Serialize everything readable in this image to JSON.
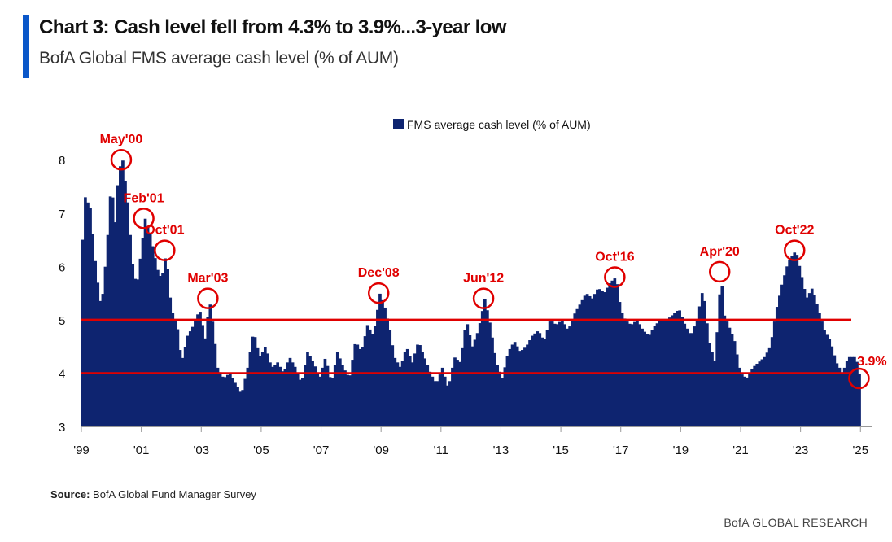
{
  "header": {
    "title": "Chart 3: Cash level fell from 4.3% to 3.9%...3-year low",
    "subtitle": "BofA Global FMS average cash level (% of AUM)"
  },
  "source": {
    "label": "Source:",
    "text": "BofA Global Fund Manager Survey"
  },
  "footer": "BofA GLOBAL RESEARCH",
  "colors": {
    "bar": "#0e2470",
    "threshold": "#e00000",
    "annotation": "#e00000",
    "accent": "#0a57c9"
  },
  "chart_data": {
    "type": "area",
    "title": "Chart 3: Cash level fell from 4.3% to 3.9%...3-year low",
    "subtitle": "BofA Global FMS average cash level (% of AUM)",
    "legend": {
      "label": "FMS average cash level (% of AUM)",
      "placement": "top-center"
    },
    "ylim": [
      3,
      8.4
    ],
    "yticks": [
      3,
      4,
      5,
      6,
      7,
      8
    ],
    "xlim": [
      1999.0,
      2025.4
    ],
    "xticks": [
      {
        "value": 1999,
        "label": "'99"
      },
      {
        "value": 2001,
        "label": "'01"
      },
      {
        "value": 2003,
        "label": "'03"
      },
      {
        "value": 2005,
        "label": "'05"
      },
      {
        "value": 2007,
        "label": "'07"
      },
      {
        "value": 2009,
        "label": "'09"
      },
      {
        "value": 2011,
        "label": "'11"
      },
      {
        "value": 2013,
        "label": "'13"
      },
      {
        "value": 2015,
        "label": "'15"
      },
      {
        "value": 2017,
        "label": "'17"
      },
      {
        "value": 2019,
        "label": "'19"
      },
      {
        "value": 2021,
        "label": "'21"
      },
      {
        "value": 2023,
        "label": "'23"
      },
      {
        "value": 2025,
        "label": "'25"
      }
    ],
    "reference_lines": [
      5.0,
      4.0
    ],
    "series": [
      {
        "name": "FMS average cash level (% of AUM)",
        "points": [
          [
            1999.0,
            6.5
          ],
          [
            1999.08,
            7.3
          ],
          [
            1999.25,
            7.1
          ],
          [
            1999.45,
            5.9
          ],
          [
            1999.62,
            5.2
          ],
          [
            1999.8,
            6.3
          ],
          [
            1999.95,
            7.6
          ],
          [
            2000.08,
            6.8
          ],
          [
            2000.2,
            7.8
          ],
          [
            2000.33,
            8.0
          ],
          [
            2000.5,
            7.2
          ],
          [
            2000.65,
            6.1
          ],
          [
            2000.8,
            5.6
          ],
          [
            2000.95,
            6.3
          ],
          [
            2001.08,
            6.9
          ],
          [
            2001.25,
            6.6
          ],
          [
            2001.4,
            6.2
          ],
          [
            2001.55,
            5.8
          ],
          [
            2001.7,
            5.9
          ],
          [
            2001.78,
            6.3
          ],
          [
            2001.95,
            5.2
          ],
          [
            2002.15,
            4.9
          ],
          [
            2002.3,
            4.2
          ],
          [
            2002.5,
            4.7
          ],
          [
            2002.7,
            4.9
          ],
          [
            2002.9,
            5.2
          ],
          [
            2003.1,
            4.6
          ],
          [
            2003.22,
            5.4
          ],
          [
            2003.35,
            4.9
          ],
          [
            2003.5,
            4.1
          ],
          [
            2003.7,
            3.9
          ],
          [
            2003.9,
            4.0
          ],
          [
            2004.1,
            3.8
          ],
          [
            2004.3,
            3.6
          ],
          [
            2004.5,
            4.1
          ],
          [
            2004.7,
            4.8
          ],
          [
            2004.9,
            4.3
          ],
          [
            2005.1,
            4.5
          ],
          [
            2005.3,
            4.1
          ],
          [
            2005.5,
            4.2
          ],
          [
            2005.7,
            4.0
          ],
          [
            2005.9,
            4.3
          ],
          [
            2006.1,
            4.1
          ],
          [
            2006.3,
            3.8
          ],
          [
            2006.5,
            4.4
          ],
          [
            2006.7,
            4.2
          ],
          [
            2006.9,
            3.9
          ],
          [
            2007.1,
            4.3
          ],
          [
            2007.3,
            3.8
          ],
          [
            2007.5,
            4.4
          ],
          [
            2007.7,
            4.1
          ],
          [
            2007.9,
            3.9
          ],
          [
            2008.1,
            4.6
          ],
          [
            2008.3,
            4.4
          ],
          [
            2008.5,
            4.9
          ],
          [
            2008.7,
            4.7
          ],
          [
            2008.92,
            5.5
          ],
          [
            2009.1,
            5.2
          ],
          [
            2009.25,
            4.8
          ],
          [
            2009.4,
            4.3
          ],
          [
            2009.6,
            4.1
          ],
          [
            2009.8,
            4.5
          ],
          [
            2010.0,
            4.2
          ],
          [
            2010.2,
            4.6
          ],
          [
            2010.4,
            4.3
          ],
          [
            2010.6,
            4.0
          ],
          [
            2010.8,
            3.8
          ],
          [
            2011.0,
            4.1
          ],
          [
            2011.2,
            3.7
          ],
          [
            2011.4,
            4.3
          ],
          [
            2011.6,
            4.2
          ],
          [
            2011.8,
            5.0
          ],
          [
            2012.0,
            4.5
          ],
          [
            2012.2,
            4.8
          ],
          [
            2012.42,
            5.4
          ],
          [
            2012.6,
            4.9
          ],
          [
            2012.8,
            4.2
          ],
          [
            2013.0,
            3.9
          ],
          [
            2013.2,
            4.4
          ],
          [
            2013.4,
            4.6
          ],
          [
            2013.6,
            4.4
          ],
          [
            2013.8,
            4.5
          ],
          [
            2014.0,
            4.7
          ],
          [
            2014.2,
            4.8
          ],
          [
            2014.4,
            4.6
          ],
          [
            2014.6,
            5.0
          ],
          [
            2014.8,
            4.9
          ],
          [
            2015.0,
            5.0
          ],
          [
            2015.2,
            4.8
          ],
          [
            2015.4,
            5.1
          ],
          [
            2015.6,
            5.3
          ],
          [
            2015.8,
            5.5
          ],
          [
            2016.0,
            5.4
          ],
          [
            2016.2,
            5.6
          ],
          [
            2016.4,
            5.5
          ],
          [
            2016.6,
            5.7
          ],
          [
            2016.8,
            5.8
          ],
          [
            2016.95,
            5.2
          ],
          [
            2017.1,
            5.0
          ],
          [
            2017.3,
            4.9
          ],
          [
            2017.5,
            5.0
          ],
          [
            2017.7,
            4.8
          ],
          [
            2017.9,
            4.7
          ],
          [
            2018.1,
            4.9
          ],
          [
            2018.3,
            5.0
          ],
          [
            2018.5,
            5.0
          ],
          [
            2018.7,
            5.1
          ],
          [
            2018.9,
            5.2
          ],
          [
            2019.1,
            4.9
          ],
          [
            2019.3,
            4.7
          ],
          [
            2019.5,
            5.0
          ],
          [
            2019.7,
            5.6
          ],
          [
            2019.9,
            4.6
          ],
          [
            2020.1,
            4.2
          ],
          [
            2020.3,
            5.9
          ],
          [
            2020.4,
            5.1
          ],
          [
            2020.55,
            4.9
          ],
          [
            2020.75,
            4.6
          ],
          [
            2020.95,
            4.0
          ],
          [
            2021.15,
            3.9
          ],
          [
            2021.35,
            4.1
          ],
          [
            2021.55,
            4.2
          ],
          [
            2021.75,
            4.3
          ],
          [
            2021.95,
            4.5
          ],
          [
            2022.15,
            5.2
          ],
          [
            2022.35,
            5.7
          ],
          [
            2022.55,
            6.1
          ],
          [
            2022.8,
            6.3
          ],
          [
            2023.0,
            5.8
          ],
          [
            2023.15,
            5.4
          ],
          [
            2023.35,
            5.6
          ],
          [
            2023.55,
            5.2
          ],
          [
            2023.75,
            4.8
          ],
          [
            2023.95,
            4.6
          ],
          [
            2024.15,
            4.2
          ],
          [
            2024.35,
            4.0
          ],
          [
            2024.55,
            4.3
          ],
          [
            2024.8,
            4.3
          ],
          [
            2024.95,
            3.9
          ]
        ]
      }
    ],
    "annotations": [
      {
        "label": "May'00",
        "x": 2000.33,
        "y": 8.0
      },
      {
        "label": "Feb'01",
        "x": 2001.08,
        "y": 6.9
      },
      {
        "label": "Oct'01",
        "x": 2001.78,
        "y": 6.3
      },
      {
        "label": "Mar'03",
        "x": 2003.22,
        "y": 5.4
      },
      {
        "label": "Dec'08",
        "x": 2008.92,
        "y": 5.5
      },
      {
        "label": "Jun'12",
        "x": 2012.42,
        "y": 5.4
      },
      {
        "label": "Oct'16",
        "x": 2016.8,
        "y": 5.8
      },
      {
        "label": "Apr'20",
        "x": 2020.3,
        "y": 5.9
      },
      {
        "label": "Oct'22",
        "x": 2022.8,
        "y": 6.3
      },
      {
        "label": "3.9%",
        "x": 2024.95,
        "y": 3.9
      }
    ]
  }
}
